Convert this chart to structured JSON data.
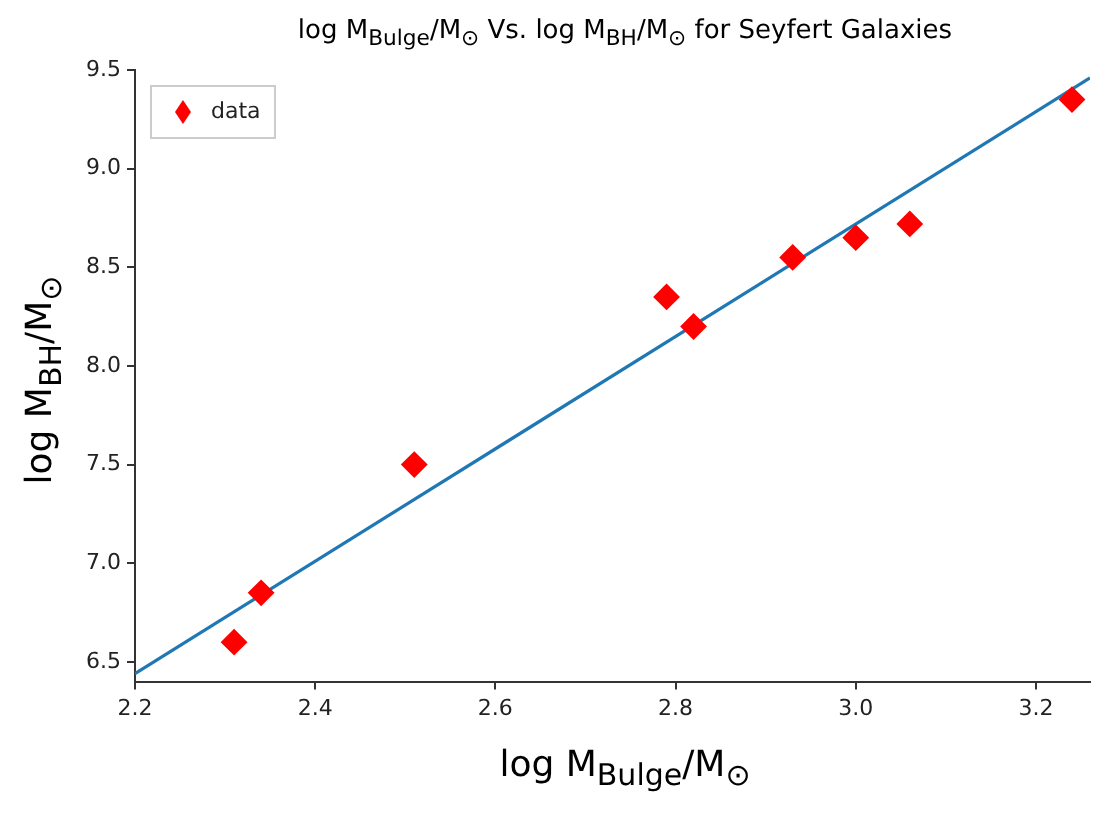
{
  "chart_data": {
    "type": "scatter",
    "title": "log M$_{Bulge}$/M$_{⊙}$ Vs. log M$_{BH}$/M$_{⊙}$ for Seyfert Galaxies",
    "xlabel": "log M$_{Bulge}$/M$_{⊙}$",
    "ylabel": "log M$_{BH}$/M$_{⊙}$",
    "series": [
      {
        "name": "data",
        "color": "#ff0000",
        "marker": "diamond",
        "x": [
          2.31,
          2.34,
          2.51,
          2.79,
          2.82,
          2.93,
          3.0,
          3.06,
          3.24
        ],
        "values": [
          6.6,
          6.85,
          7.5,
          8.35,
          8.2,
          8.55,
          8.65,
          8.72,
          9.35
        ]
      },
      {
        "type": "line",
        "color": "#1f77b4",
        "marker": "none",
        "x": [
          2.2,
          3.26
        ],
        "values": [
          6.44,
          9.46
        ]
      }
    ],
    "xlim": [
      2.2,
      3.26
    ],
    "xticks": [
      2.2,
      2.4,
      2.6,
      2.8,
      {
        "value": 3,
        "label": "3.0"
      },
      3.2
    ],
    "ylim": [
      6.4,
      9.5
    ],
    "yticks": [
      6.5,
      {
        "value": 7,
        "label": "7.0"
      },
      7.5,
      {
        "value": 8,
        "label": "8.0"
      },
      8.5,
      {
        "value": 9,
        "label": "9.0"
      },
      9.5
    ],
    "grid": false,
    "legend": "top left"
  }
}
